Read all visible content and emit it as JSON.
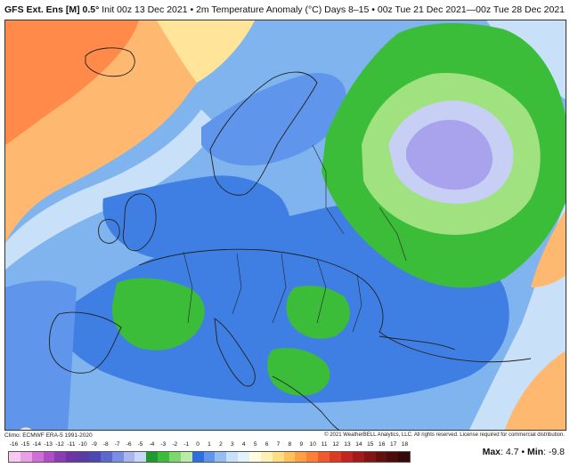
{
  "header": {
    "model": "GFS Ext. Ens [M] 0.5°",
    "init": "Init 00z 13 Dec 2021",
    "variable": "2m Temperature Anomaly (°C)",
    "separator": "•",
    "valid": "Days 8–15 • 00z Tue 21 Dec 2021—00z Tue 28 Dec 2021"
  },
  "footer": {
    "climatology": "Climo: ECMWF ERA-5 1991-2020",
    "copyright": "© 2021 WeatherBELL Analytics, LLC. All rights reserved. License required for commercial distribution.",
    "max_label": "Max",
    "max_value": "4.7",
    "min_label": "Min",
    "min_value": "-9.8"
  },
  "colorbar": {
    "labels": [
      "-16",
      "-15",
      "-14",
      "-13",
      "-12",
      "-11",
      "-10",
      "-9",
      "-8",
      "-7",
      "-6",
      "-5",
      "-4",
      "-3",
      "-2",
      "-1",
      "0",
      "1",
      "2",
      "3",
      "4",
      "5",
      "6",
      "7",
      "8",
      "9",
      "10",
      "11",
      "12",
      "13",
      "14",
      "15",
      "16",
      "17",
      "18"
    ],
    "colors": [
      "#f7c9f0",
      "#e99fe6",
      "#cf6fd6",
      "#b04ec6",
      "#8d3ab5",
      "#6f33a8",
      "#5a3aa3",
      "#4a49b3",
      "#5b69cf",
      "#7a8fe3",
      "#a8b8ef",
      "#c9d8f6",
      "#1f9a2f",
      "#3cbd3a",
      "#7fd66a",
      "#b9eaa6",
      "#2e6fe0",
      "#5f95ea",
      "#94bdf2",
      "#c8e0f8",
      "#e2f3fb",
      "#fffce0",
      "#fff1b0",
      "#ffdd80",
      "#ffc15b",
      "#ffa044",
      "#ff7e38",
      "#f25a2c",
      "#dd3a24",
      "#c3241d",
      "#a41a18",
      "#821414",
      "#651010",
      "#4c0c0c",
      "#360808"
    ]
  },
  "map_legend_colors": {
    "below_normal_strong": "#2e6fe0",
    "below_normal": "#5f95ea",
    "green_band": "#3cbd3a",
    "purple_core": "#a8b8ef",
    "above_normal": "#ffa044",
    "land_outline": "#222222"
  },
  "logo": {
    "text": "WeatherBELL"
  }
}
